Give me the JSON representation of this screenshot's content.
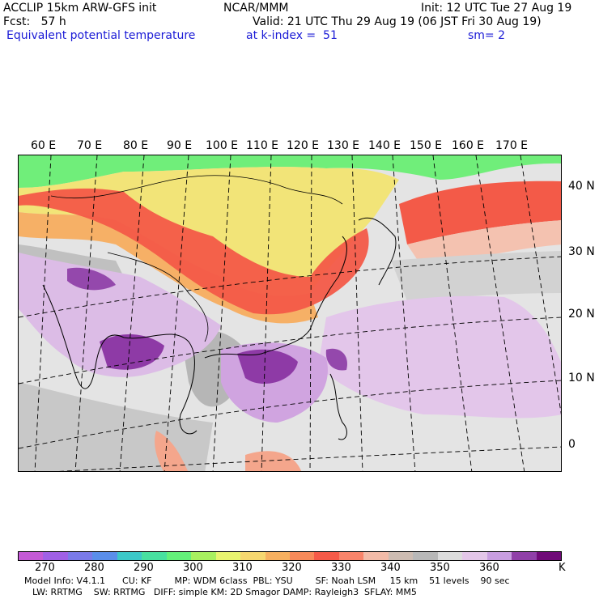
{
  "header": {
    "model": "ACCLIP 15km ARW-GFS init",
    "org": "NCAR/MMM",
    "init": "Init: 12 UTC Tue 27 Aug 19",
    "fcst": "Fcst:   57 h",
    "valid": "Valid: 21 UTC Thu 29 Aug 19 (06 JST Fri 30 Aug 19)",
    "field": "Equivalent potential temperature",
    "level": "at k-index =  51",
    "smooth": "sm= 2"
  },
  "map": {
    "lon_labels": [
      "60 E",
      "70 E",
      "80 E",
      "90 E",
      "100 E",
      "110 E",
      "120 E",
      "130 E",
      "140 E",
      "150 E",
      "160 E",
      "170 E"
    ],
    "lat_labels": [
      "40 N",
      "30 N",
      "20 N",
      "10 N",
      "0"
    ]
  },
  "colorbar": {
    "colors": [
      "#c45ad6",
      "#a060e6",
      "#7a7ae8",
      "#5a8eea",
      "#3cc8c8",
      "#48e0a0",
      "#64f07a",
      "#a8f060",
      "#e8f470",
      "#f6d770",
      "#f7b060",
      "#f78a5a",
      "#f55a48",
      "#f8846a",
      "#f2bba8",
      "#cdbcb2",
      "#b8b8b8",
      "#dcdcdc",
      "#e3c6e8",
      "#c89ee0",
      "#9040a8",
      "#700a78"
    ],
    "ticks": [
      "270",
      "280",
      "290",
      "300",
      "310",
      "320",
      "330",
      "340",
      "350",
      "360"
    ],
    "unit": "K"
  },
  "info": {
    "line1": "Model Info: V4.1.1      CU: KF        MP: WDM 6class  PBL: YSU        SF: Noah LSM     15 km    51 levels    90 sec",
    "line2": "LW: RRTMG    SW: RRTMG   DIFF: simple KM: 2D Smagor DAMP: Rayleigh3  SFLAY: MM5"
  }
}
